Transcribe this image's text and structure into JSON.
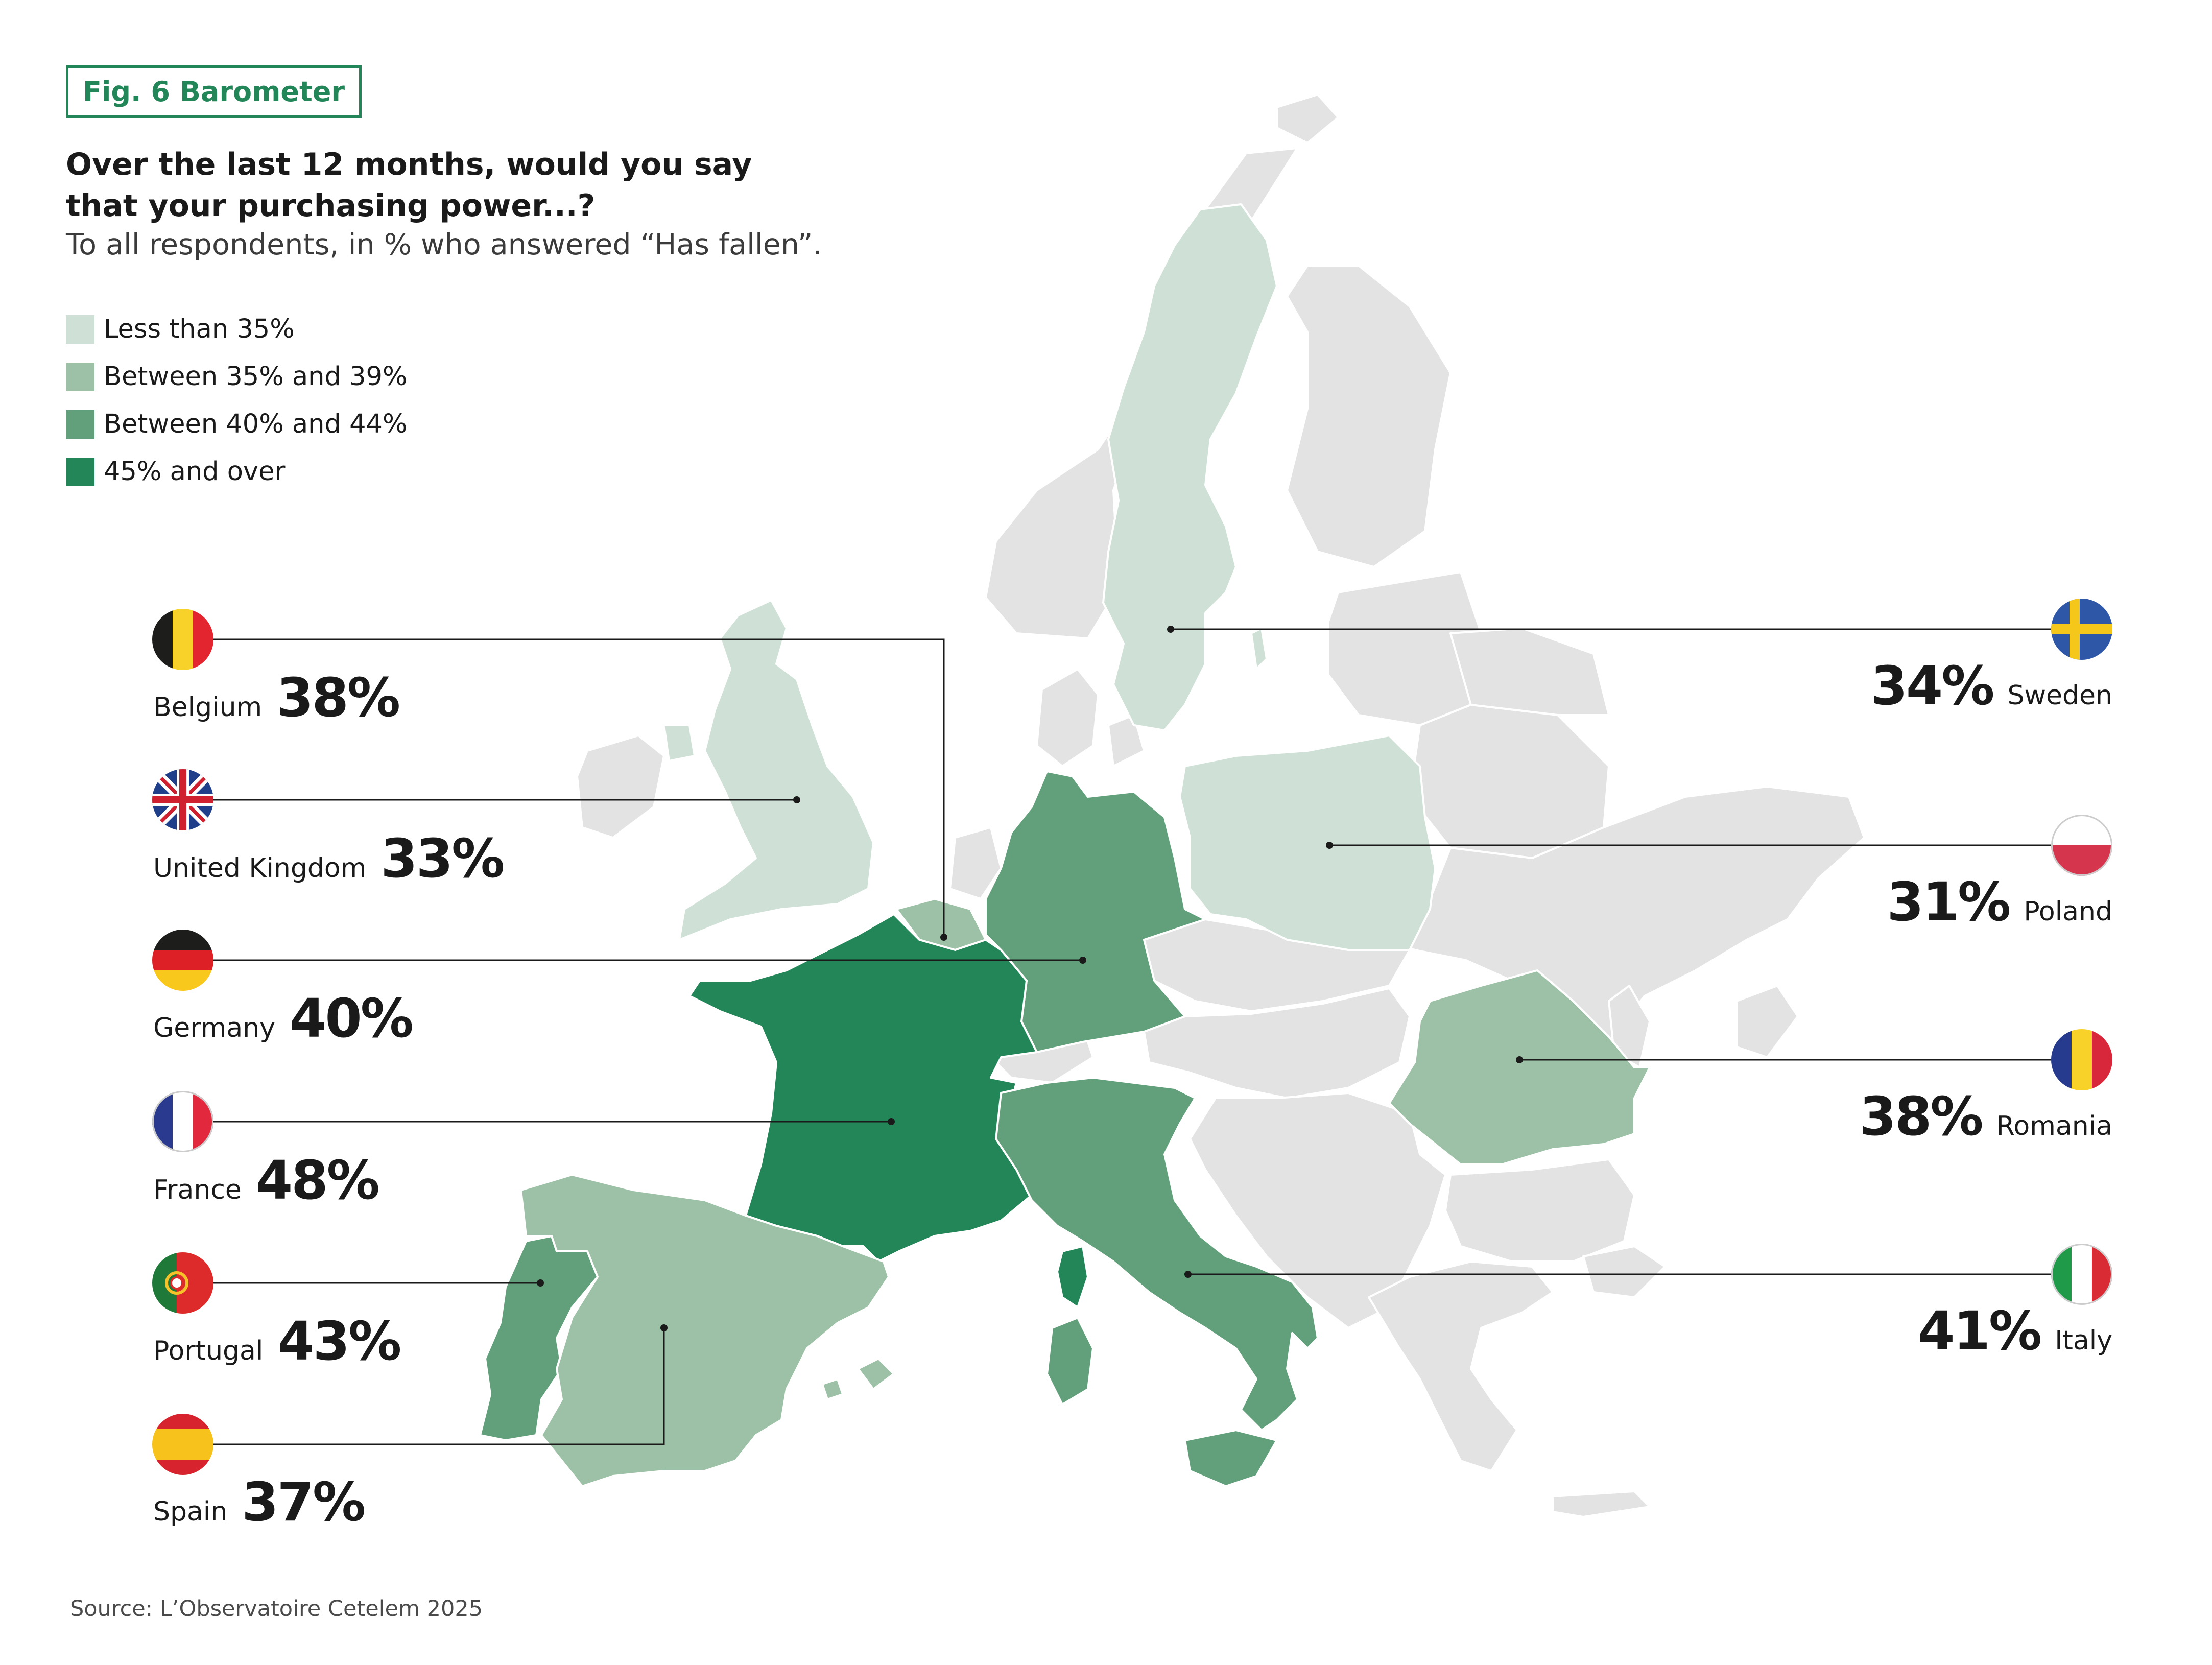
{
  "figure_label": "Fig. 6 Barometer",
  "question": "Over the last 12 months, would you say that your purchasing power...?",
  "subtitle": "To all respondents, in % who answered “Has fallen”.",
  "legend": [
    {
      "label": "Less than 35%",
      "color": "#cfe1d6"
    },
    {
      "label": "Between 35% and 39%",
      "color": "#9dc1a6"
    },
    {
      "label": "Between 40% and 44%",
      "color": "#62a07b"
    },
    {
      "label": "45% and over",
      "color": "#238658"
    }
  ],
  "other_countries_color": "#e3e3e3",
  "countries": [
    {
      "name": "Belgium",
      "value": "38%",
      "band": 1
    },
    {
      "name": "United Kingdom",
      "value": "33%",
      "band": 0
    },
    {
      "name": "Germany",
      "value": "40%",
      "band": 2
    },
    {
      "name": "France",
      "value": "48%",
      "band": 3
    },
    {
      "name": "Portugal",
      "value": "43%",
      "band": 2
    },
    {
      "name": "Spain",
      "value": "37%",
      "band": 1
    },
    {
      "name": "Sweden",
      "value": "34%",
      "band": 0
    },
    {
      "name": "Poland",
      "value": "31%",
      "band": 0
    },
    {
      "name": "Romania",
      "value": "38%",
      "band": 1
    },
    {
      "name": "Italy",
      "value": "41%",
      "band": 2
    }
  ],
  "source": "Source: L’Observatoire Cetelem 2025"
}
